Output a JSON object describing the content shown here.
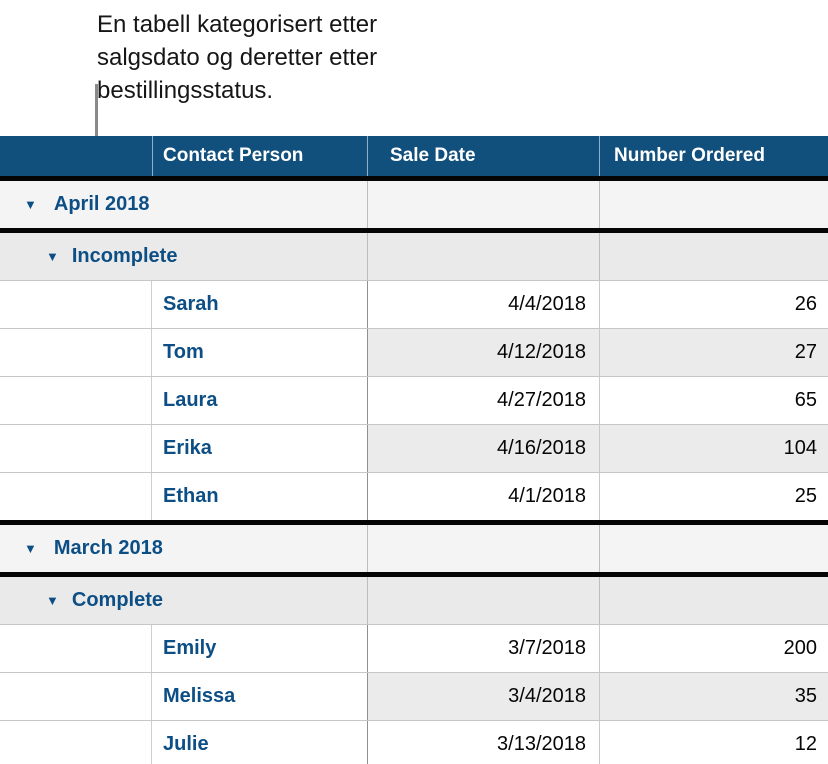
{
  "caption": {
    "line1": "En tabell kategorisert etter",
    "line2": "salgsdato og deretter etter",
    "line3": "bestillingsstatus."
  },
  "icons": {
    "disclosure": "▼"
  },
  "colors": {
    "header_bg": "#114F7C",
    "category_text": "#0D4F85",
    "level1_row_bg": "#f4f4f5",
    "level2_row_bg": "#eaeaea",
    "alt_band_bg": "#ebebeb",
    "callout_line": "#8a8a8a"
  },
  "table": {
    "columns": {
      "a": "",
      "b": "Contact Person",
      "c": "Sale Date",
      "d": "Number Ordered"
    },
    "rows": [
      {
        "type": "category1",
        "label": "April 2018"
      },
      {
        "type": "category2",
        "label": "Incomplete"
      },
      {
        "type": "data",
        "name": "Sarah",
        "date": "4/4/2018",
        "qty": "26"
      },
      {
        "type": "data",
        "name": "Tom",
        "date": "4/12/2018",
        "qty": "27"
      },
      {
        "type": "data",
        "name": "Laura",
        "date": "4/27/2018",
        "qty": "65"
      },
      {
        "type": "data",
        "name": "Erika",
        "date": "4/16/2018",
        "qty": "104"
      },
      {
        "type": "data",
        "name": "Ethan",
        "date": "4/1/2018",
        "qty": "25"
      },
      {
        "type": "category1",
        "label": "March 2018"
      },
      {
        "type": "category2",
        "label": "Complete"
      },
      {
        "type": "data",
        "name": "Emily",
        "date": "3/7/2018",
        "qty": "200"
      },
      {
        "type": "data",
        "name": "Melissa",
        "date": "3/4/2018",
        "qty": "35"
      },
      {
        "type": "data",
        "name": "Julie",
        "date": "3/13/2018",
        "qty": "12"
      }
    ]
  }
}
